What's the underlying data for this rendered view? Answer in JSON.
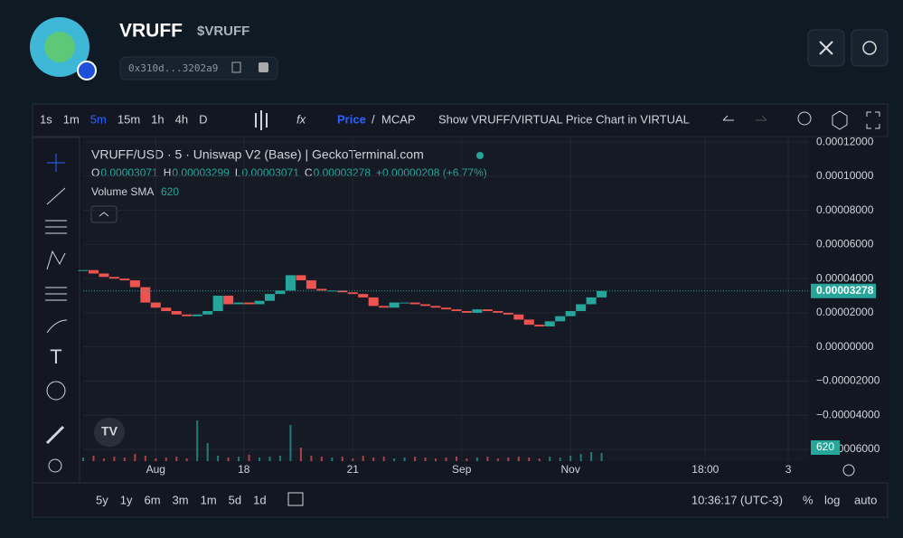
{
  "header": {
    "name": "VRUFF",
    "ticker": "$VRUFF",
    "address": "0x310d...3202a9"
  },
  "toolbar": {
    "intervals": [
      "1s",
      "1m",
      "5m",
      "15m",
      "1h",
      "4h",
      "D"
    ],
    "price": "Price",
    "separator": "/",
    "mcap": "MCAP",
    "show_chart": "Show VRUFF/VIRTUAL Price Chart in VIRTUAL"
  },
  "chart_data": {
    "type": "candlestick",
    "title": "VRUFF/USD · 5 · Uniswap V2 (Base)  |  GeckoTerminal.com",
    "ohlc": [
      {
        "label": "O",
        "value": "0.00003071"
      },
      {
        "label": "H",
        "value": "0.00003299"
      },
      {
        "label": "L",
        "value": "0.00003071"
      },
      {
        "label": "C",
        "value": "0.00003278"
      }
    ],
    "change": "+0.00000208 (+6.77%)",
    "volume_label": "Volume SMA",
    "volume_value": "620",
    "x": [
      0,
      2,
      4,
      6,
      8,
      10,
      12,
      14,
      16,
      18,
      20,
      22,
      24,
      26,
      28,
      30,
      32,
      34,
      36,
      38,
      40,
      42,
      44,
      46,
      48,
      50,
      52,
      54,
      56,
      58,
      60,
      62,
      64,
      66,
      68,
      70,
      72,
      74,
      76,
      78,
      80,
      82,
      84,
      86,
      88,
      90,
      92,
      94,
      96,
      98,
      100
    ],
    "values": [
      4.5e-05,
      4.3e-05,
      4.1e-05,
      4e-05,
      3.9e-05,
      3.5e-05,
      2.6e-05,
      2.3e-05,
      2.1e-05,
      1.9e-05,
      1.8e-05,
      1.9e-05,
      2.1e-05,
      3e-05,
      2.5e-05,
      2.6e-05,
      2.5e-05,
      2.7e-05,
      3.1e-05,
      3.3e-05,
      4.2e-05,
      3.9e-05,
      3.4e-05,
      3.3e-05,
      3.3e-05,
      3.2e-05,
      3.1e-05,
      2.9e-05,
      2.4e-05,
      2.3e-05,
      2.6e-05,
      2.6e-05,
      2.5e-05,
      2.4e-05,
      2.3e-05,
      2.2e-05,
      2.1e-05,
      2e-05,
      2.2e-05,
      2.1e-05,
      2e-05,
      1.9e-05,
      1.6e-05,
      1.3e-05,
      1.2e-05,
      1.5e-05,
      1.8e-05,
      2.1e-05,
      2.5e-05,
      2.9e-05,
      3.278e-05
    ],
    "volume": [
      4,
      6,
      3,
      5,
      4,
      8,
      6,
      3,
      4,
      5,
      3,
      45,
      20,
      6,
      4,
      5,
      7,
      4,
      5,
      6,
      40,
      15,
      6,
      5,
      4,
      5,
      3,
      6,
      4,
      5,
      3,
      4,
      5,
      4,
      3,
      4,
      5,
      3,
      4,
      5,
      3,
      4,
      5,
      4,
      3,
      5,
      4,
      6,
      8,
      10,
      9
    ],
    "volume_lim": [
      0,
      100
    ],
    "last_price": {
      "value": 3.278e-05,
      "label": "0.00003278"
    },
    "xlim": [
      0,
      140
    ],
    "xticks": [
      {
        "value": 14,
        "label": "Aug"
      },
      {
        "value": 31,
        "label": "18"
      },
      {
        "value": 52,
        "label": "21"
      },
      {
        "value": 73,
        "label": "Sep"
      },
      {
        "value": 94,
        "label": "Nov"
      },
      {
        "value": 120,
        "label": "18:00"
      },
      {
        "value": 136,
        "label": "3"
      }
    ],
    "ylim": [
      -6.69e-05,
      0.0001227
    ],
    "yticks": [
      {
        "value": 0.00012,
        "label": "0.00012000"
      },
      {
        "value": 0.0001,
        "label": "0.00010000"
      },
      {
        "value": 8e-05,
        "label": "0.00008000"
      },
      {
        "value": 6e-05,
        "label": "0.00006000"
      },
      {
        "value": 4e-05,
        "label": "0.00004000"
      },
      {
        "value": 2e-05,
        "label": "0.00002000"
      },
      {
        "value": 0,
        "label": "0.00000000"
      },
      {
        "value": -2e-05,
        "label": "−0.00002000"
      },
      {
        "value": -4e-05,
        "label": "−0.00004000"
      },
      {
        "value": -6e-05,
        "label": "−0.00006000"
      }
    ],
    "up_color": "#26a69a",
    "down_color": "#ef5350",
    "grid": true
  },
  "bottom_bar": {
    "ranges": [
      "5y",
      "1y",
      "6m",
      "3m",
      "1m",
      "5d",
      "1d"
    ],
    "time": "10:36:17 (UTC-3)",
    "percent": "%",
    "log": "log",
    "auto": "auto"
  }
}
